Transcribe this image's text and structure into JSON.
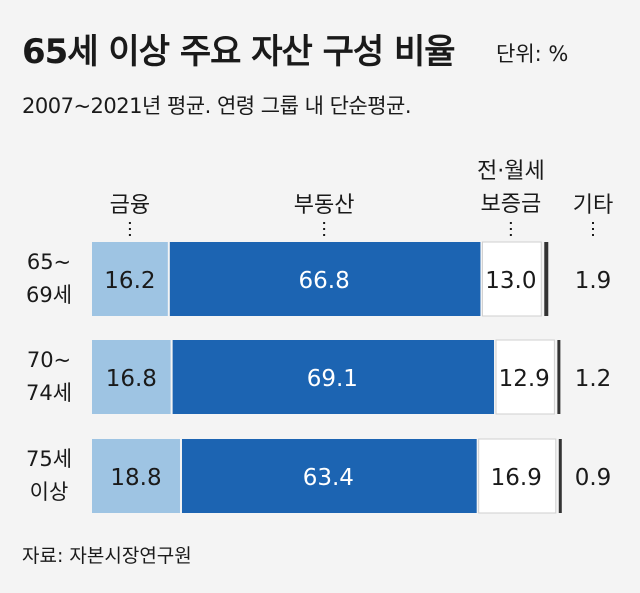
{
  "title": "65세 이상 주요 자산 구성 비율",
  "unit": "단위: %",
  "subtitle": "2007~2021년 평균. 연령 그룹 내 단순평균.",
  "source": "자료: 자본시장연구원",
  "colors": {
    "financial": "#9ec4e3",
    "real_estate": "#1c64b2",
    "deposit": "#ffffff",
    "other": "#333333",
    "background": "#f4f4f4"
  },
  "chart_data": {
    "type": "stacked-bar-horizontal",
    "title": "65세 이상 주요 자산 구성 비율",
    "unit": "%",
    "categories": [
      {
        "line1": "65~",
        "line2": "69세"
      },
      {
        "line1": "70~",
        "line2": "74세"
      },
      {
        "line1": "75세",
        "line2": "이상"
      }
    ],
    "series": [
      {
        "key": "financial",
        "name_lines": [
          "금융"
        ],
        "values": [
          16.2,
          16.8,
          18.8
        ]
      },
      {
        "key": "real_estate",
        "name_lines": [
          "부동산"
        ],
        "values": [
          66.8,
          69.1,
          63.4
        ]
      },
      {
        "key": "deposit",
        "name_lines": [
          "전·월세",
          "보증금"
        ],
        "values": [
          13.0,
          12.9,
          16.9
        ]
      },
      {
        "key": "other",
        "name_lines": [
          "기타"
        ],
        "values": [
          1.9,
          1.2,
          0.9
        ]
      }
    ],
    "xlim": [
      0,
      100
    ]
  }
}
